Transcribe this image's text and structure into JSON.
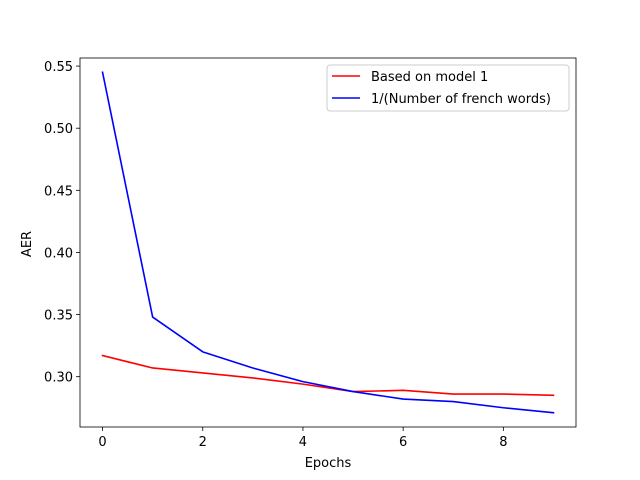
{
  "chart_data": {
    "type": "line",
    "title": "",
    "xlabel": "Epochs",
    "ylabel": "AER",
    "x": [
      0,
      1,
      2,
      3,
      4,
      5,
      6,
      7,
      8,
      9
    ],
    "xlim": [
      -0.45,
      9.45
    ],
    "ylim": [
      0.2595,
      0.5565
    ],
    "xticks": [
      0,
      2,
      4,
      6,
      8
    ],
    "yticks": [
      0.3,
      0.35,
      0.4,
      0.45,
      0.5,
      0.55
    ],
    "xtick_labels": [
      "0",
      "2",
      "4",
      "6",
      "8"
    ],
    "ytick_labels": [
      "0.30",
      "0.35",
      "0.40",
      "0.45",
      "0.50",
      "0.55"
    ],
    "grid": false,
    "legend_position": "top-right",
    "series": [
      {
        "name": "Based on model 1",
        "color": "#ff0000",
        "values": [
          0.317,
          0.307,
          0.303,
          0.299,
          0.294,
          0.288,
          0.289,
          0.286,
          0.286,
          0.285
        ]
      },
      {
        "name": "1/(Number of french words)",
        "color": "#0000ff",
        "values": [
          0.545,
          0.348,
          0.32,
          0.307,
          0.296,
          0.288,
          0.282,
          0.28,
          0.275,
          0.271
        ]
      }
    ]
  }
}
